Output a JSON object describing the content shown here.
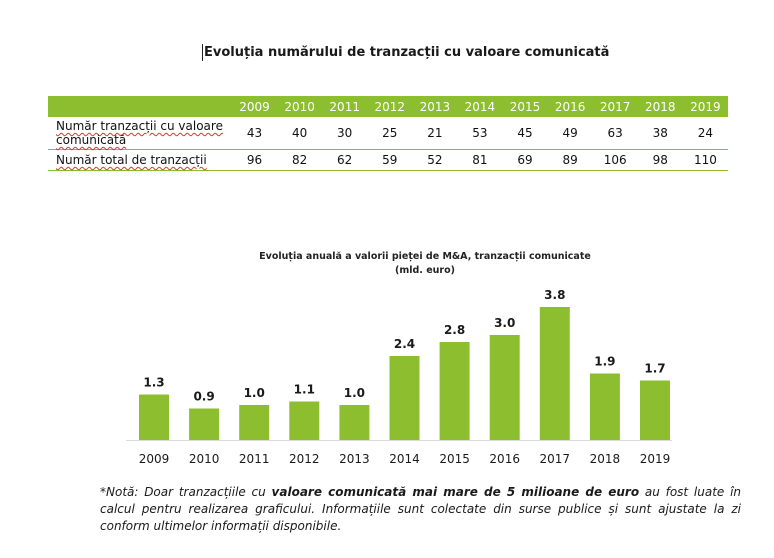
{
  "document": {
    "table_title": "Evoluția numărului de tranzacții cu valoare comunicată"
  },
  "table": {
    "years": [
      "2009",
      "2010",
      "2011",
      "2012",
      "2013",
      "2014",
      "2015",
      "2016",
      "2017",
      "2018",
      "2019"
    ],
    "rows": [
      {
        "label": "Număr tranzacții cu valoare comunicată",
        "values": [
          43,
          40,
          30,
          25,
          21,
          53,
          45,
          49,
          63,
          38,
          24
        ]
      },
      {
        "label": "Număr total de tranzacții",
        "values": [
          96,
          82,
          62,
          59,
          52,
          81,
          69,
          89,
          106,
          98,
          110
        ]
      }
    ]
  },
  "chart_data": {
    "type": "bar",
    "title": "Evoluția anuală a valorii pieței de M&A, tranzacții comunicate",
    "subtitle": "(mld. euro)",
    "categories": [
      "2009",
      "2010",
      "2011",
      "2012",
      "2013",
      "2014",
      "2015",
      "2016",
      "2017",
      "2018",
      "2019"
    ],
    "values": [
      1.3,
      0.9,
      1.0,
      1.1,
      1.0,
      2.4,
      2.8,
      3.0,
      3.8,
      1.9,
      1.7
    ],
    "value_labels": [
      "1.3",
      "0.9",
      "1.0",
      "1.1",
      "1.0",
      "2.4",
      "2.8",
      "3.0",
      "3.8",
      "1.9",
      "1.7"
    ],
    "ylim": [
      0,
      3.8
    ],
    "grid": false,
    "bar_color": "#8cbe2f"
  },
  "note": {
    "prefix": "*Notă: Doar tranzacțiile cu ",
    "bold": "valoare comunicată mai mare de 5 milioane de euro",
    "suffix": " au fost luate în calcul pentru realizarea graficului. Informațiile sunt colectate din surse publice și sunt ajustate la zi conform ultimelor informații disponibile."
  },
  "colors": {
    "accent": "#8cbe2f",
    "spellcheck": "#d43a2a"
  }
}
